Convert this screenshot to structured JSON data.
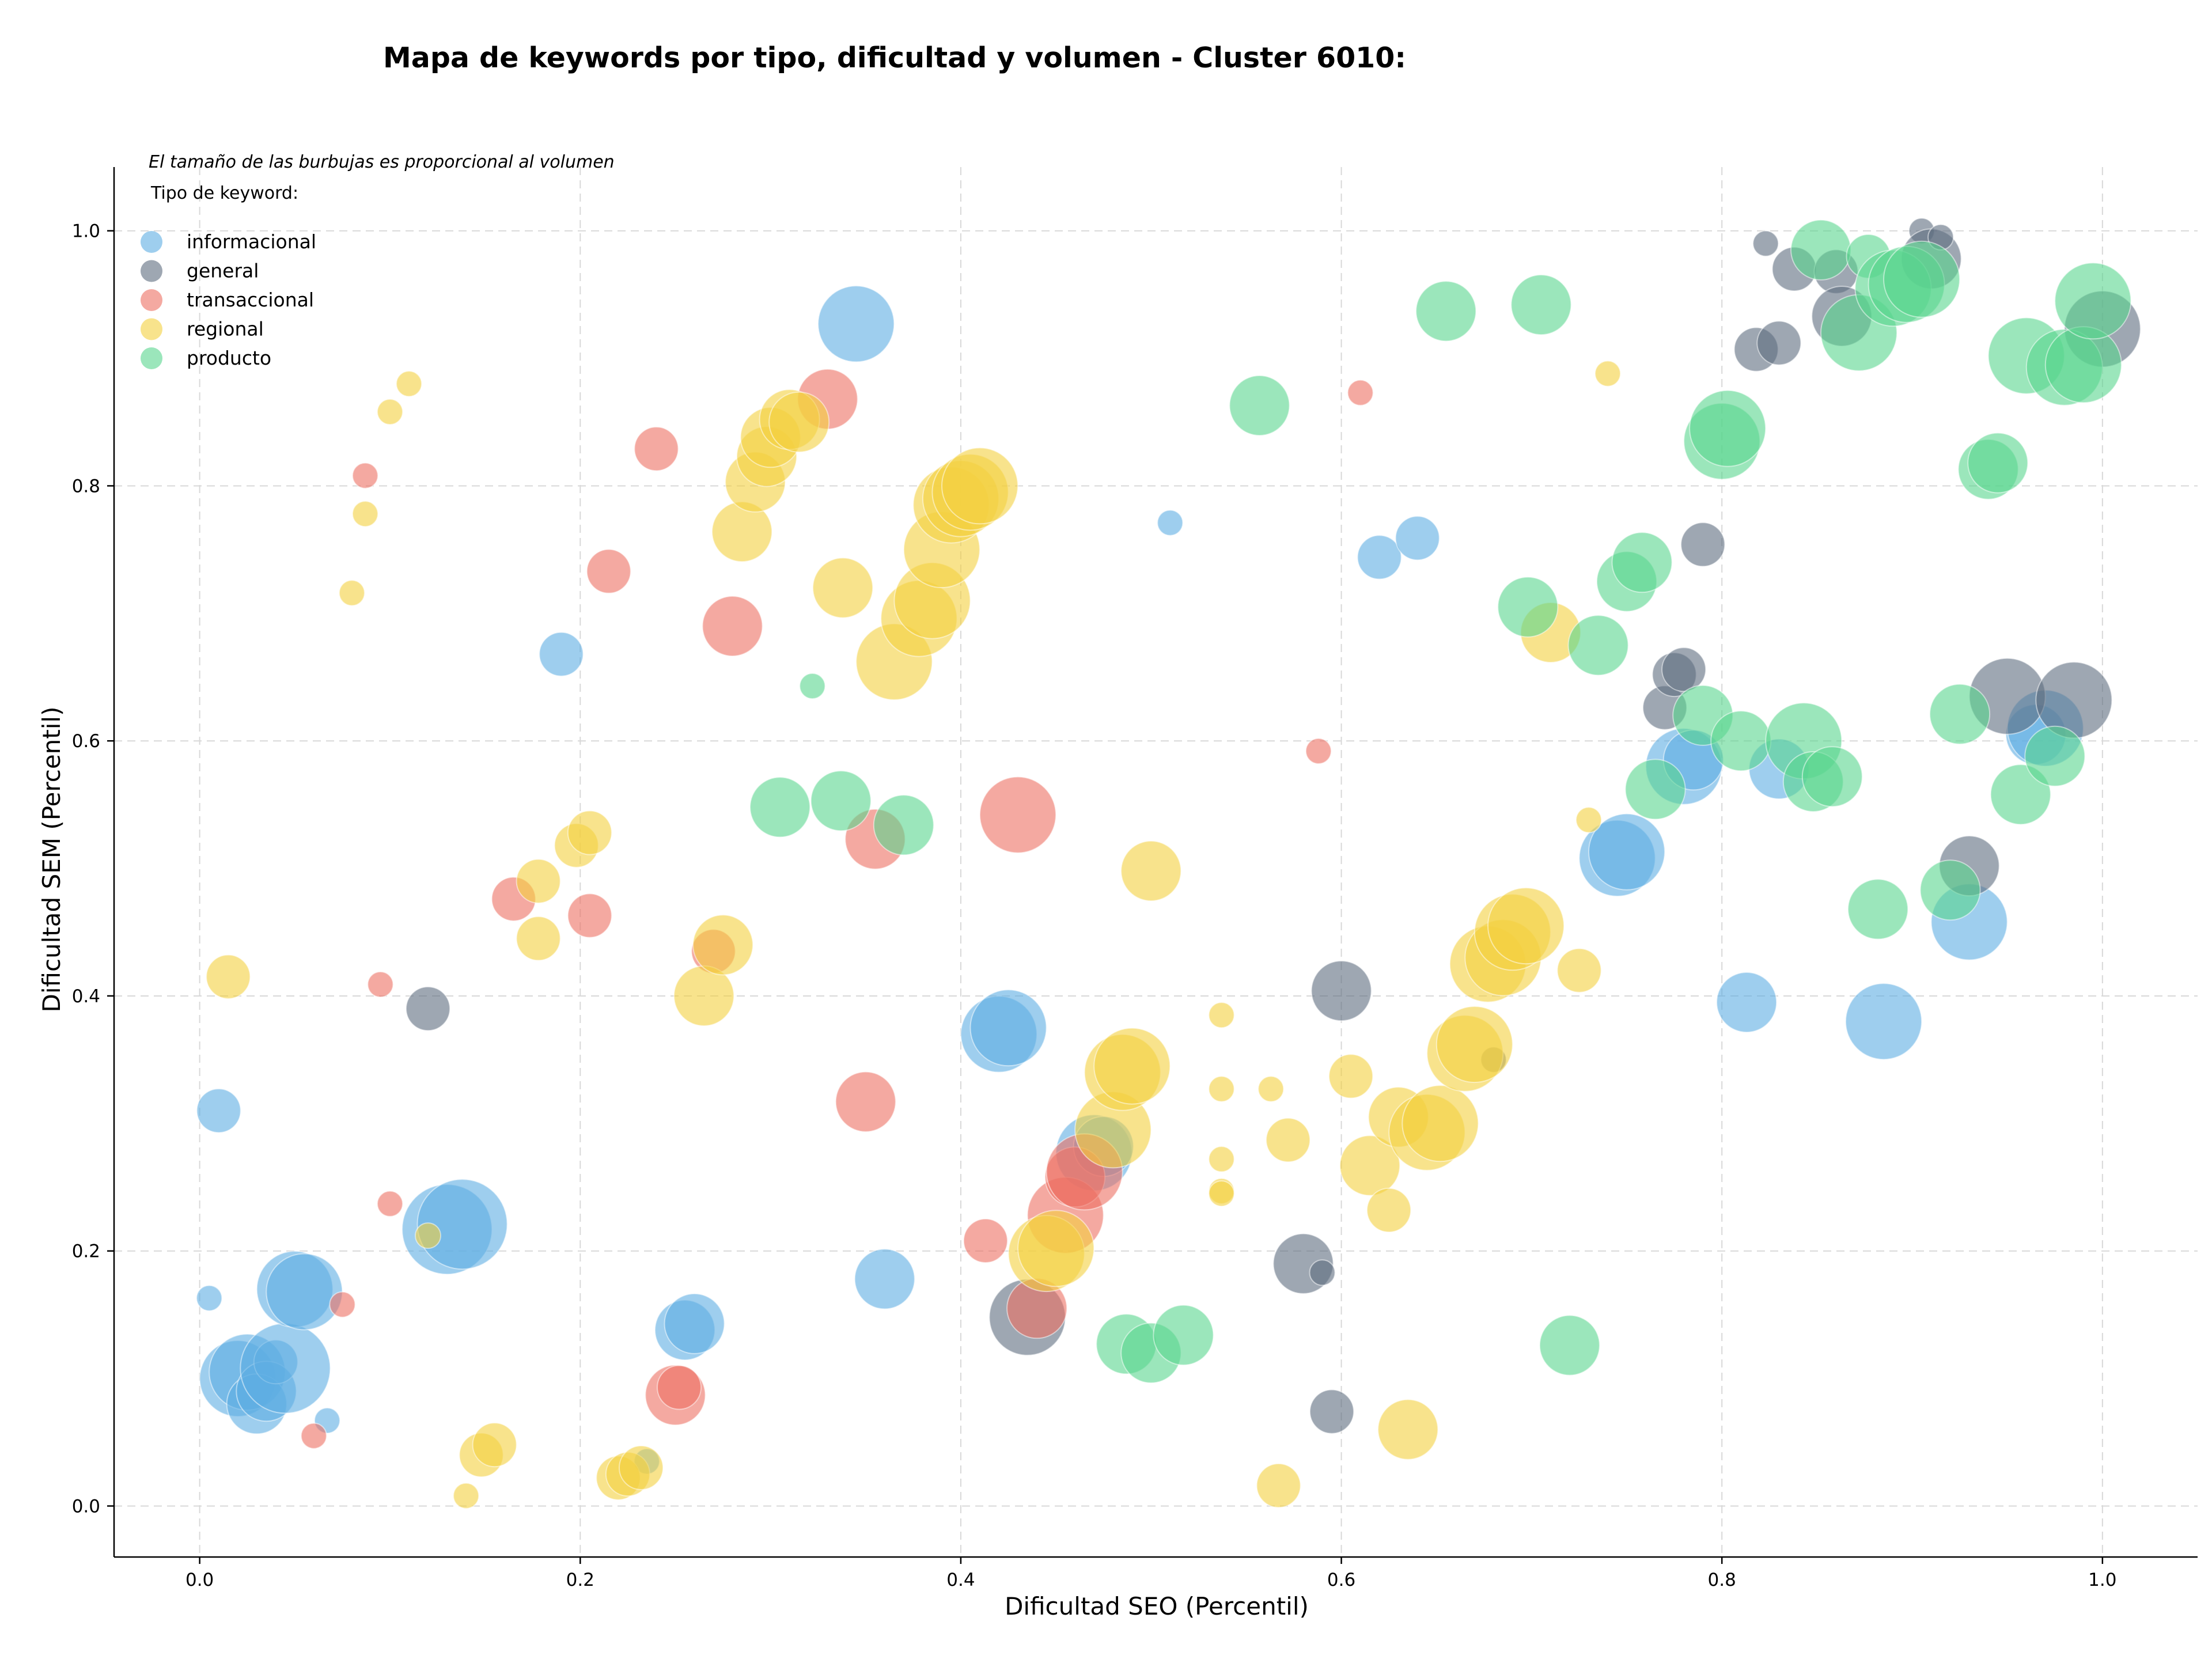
{
  "chart_data": {
    "type": "scatter",
    "title": "Mapa de keywords por tipo, dificultad y volumen - Cluster 6010:",
    "xlabel": "Dificultad SEO (Percentil)",
    "ylabel": "Dificultad SEM (Percentil)",
    "xlim": [
      -0.045,
      1.05
    ],
    "ylim": [
      -0.04,
      1.05
    ],
    "xticks": [
      0.0,
      0.2,
      0.4,
      0.6,
      0.8,
      1.0
    ],
    "xtick_labels": [
      "0.0",
      "0.2",
      "0.4",
      "0.6",
      "0.8",
      "1.0"
    ],
    "yticks": [
      0.0,
      0.2,
      0.4,
      0.6,
      0.8,
      1.0
    ],
    "ytick_labels": [
      "0.0",
      "0.2",
      "0.4",
      "0.6",
      "0.8",
      "1.0"
    ],
    "grid": true,
    "note": "El tamaño de las burbujas es proporcional al volumen",
    "legend_title": "Tipo de keyword:",
    "legend_position": "top-left",
    "series": [
      {
        "name": "informacional",
        "color": "#5dade2",
        "points": [
          [
            0.005,
            0.163,
            1
          ],
          [
            0.01,
            0.31,
            2
          ],
          [
            0.02,
            0.1,
            4
          ],
          [
            0.025,
            0.105,
            4
          ],
          [
            0.03,
            0.08,
            3
          ],
          [
            0.035,
            0.09,
            3
          ],
          [
            0.04,
            0.113,
            2
          ],
          [
            0.045,
            0.108,
            5
          ],
          [
            0.05,
            0.17,
            4
          ],
          [
            0.055,
            0.168,
            4
          ],
          [
            0.067,
            0.067,
            1
          ],
          [
            0.13,
            0.217,
            5
          ],
          [
            0.138,
            0.221,
            5
          ],
          [
            0.19,
            0.668,
            2
          ],
          [
            0.235,
            0.035,
            1
          ],
          [
            0.255,
            0.138,
            3
          ],
          [
            0.26,
            0.143,
            3
          ],
          [
            0.345,
            0.927,
            4
          ],
          [
            0.36,
            0.178,
            3
          ],
          [
            0.42,
            0.37,
            4
          ],
          [
            0.425,
            0.375,
            4
          ],
          [
            0.47,
            0.277,
            4
          ],
          [
            0.475,
            0.282,
            3
          ],
          [
            0.51,
            0.771,
            1
          ],
          [
            0.62,
            0.744,
            2
          ],
          [
            0.64,
            0.759,
            2
          ],
          [
            0.745,
            0.508,
            4
          ],
          [
            0.75,
            0.513,
            4
          ],
          [
            0.78,
            0.58,
            4
          ],
          [
            0.785,
            0.585,
            3
          ],
          [
            0.813,
            0.395,
            3
          ],
          [
            0.83,
            0.578,
            3
          ],
          [
            0.885,
            0.38,
            4
          ],
          [
            0.93,
            0.458,
            4
          ],
          [
            0.965,
            0.605,
            3
          ],
          [
            0.97,
            0.61,
            4
          ]
        ]
      },
      {
        "name": "general",
        "color": "#5d6d7e",
        "points": [
          [
            0.12,
            0.39,
            2
          ],
          [
            0.435,
            0.148,
            4
          ],
          [
            0.58,
            0.19,
            3
          ],
          [
            0.59,
            0.183,
            1
          ],
          [
            0.595,
            0.074,
            2
          ],
          [
            0.6,
            0.404,
            3
          ],
          [
            0.68,
            0.35,
            1
          ],
          [
            0.77,
            0.626,
            2
          ],
          [
            0.775,
            0.652,
            2
          ],
          [
            0.78,
            0.656,
            2
          ],
          [
            0.79,
            0.754,
            2
          ],
          [
            0.818,
            0.907,
            2
          ],
          [
            0.823,
            0.99,
            1
          ],
          [
            0.83,
            0.912,
            2
          ],
          [
            0.838,
            0.97,
            2
          ],
          [
            0.86,
            0.968,
            2
          ],
          [
            0.863,
            0.933,
            3
          ],
          [
            0.905,
            1.0,
            1
          ],
          [
            0.91,
            0.978,
            3
          ],
          [
            0.915,
            0.995,
            1
          ],
          [
            0.93,
            0.502,
            3
          ],
          [
            0.95,
            0.635,
            4
          ],
          [
            0.985,
            0.632,
            4
          ],
          [
            1.0,
            0.923,
            4
          ]
        ]
      },
      {
        "name": "transaccional",
        "color": "#ec7063",
        "points": [
          [
            0.06,
            0.055,
            1
          ],
          [
            0.075,
            0.158,
            1
          ],
          [
            0.087,
            0.808,
            1
          ],
          [
            0.095,
            0.409,
            1
          ],
          [
            0.1,
            0.237,
            1
          ],
          [
            0.165,
            0.476,
            2
          ],
          [
            0.205,
            0.463,
            2
          ],
          [
            0.215,
            0.733,
            2
          ],
          [
            0.24,
            0.829,
            2
          ],
          [
            0.25,
            0.087,
            3
          ],
          [
            0.252,
            0.093,
            2
          ],
          [
            0.27,
            0.435,
            2
          ],
          [
            0.28,
            0.69,
            3
          ],
          [
            0.33,
            0.868,
            3
          ],
          [
            0.35,
            0.317,
            3
          ],
          [
            0.355,
            0.523,
            3
          ],
          [
            0.413,
            0.208,
            2
          ],
          [
            0.43,
            0.542,
            4
          ],
          [
            0.44,
            0.155,
            3
          ],
          [
            0.455,
            0.228,
            4
          ],
          [
            0.46,
            0.258,
            3
          ],
          [
            0.465,
            0.262,
            4
          ],
          [
            0.61,
            0.873,
            1
          ],
          [
            0.588,
            0.592,
            1
          ]
        ]
      },
      {
        "name": "regional",
        "color": "#f4d03f",
        "points": [
          [
            0.015,
            0.415,
            2
          ],
          [
            0.08,
            0.716,
            1
          ],
          [
            0.087,
            0.778,
            1
          ],
          [
            0.1,
            0.858,
            1
          ],
          [
            0.11,
            0.88,
            1
          ],
          [
            0.12,
            0.212,
            1
          ],
          [
            0.14,
            0.008,
            1
          ],
          [
            0.148,
            0.04,
            2
          ],
          [
            0.155,
            0.048,
            2
          ],
          [
            0.178,
            0.445,
            2
          ],
          [
            0.178,
            0.49,
            2
          ],
          [
            0.198,
            0.518,
            2
          ],
          [
            0.205,
            0.528,
            2
          ],
          [
            0.22,
            0.022,
            2
          ],
          [
            0.225,
            0.025,
            2
          ],
          [
            0.232,
            0.03,
            2
          ],
          [
            0.265,
            0.4,
            3
          ],
          [
            0.275,
            0.44,
            3
          ],
          [
            0.285,
            0.764,
            3
          ],
          [
            0.292,
            0.803,
            3
          ],
          [
            0.298,
            0.823,
            3
          ],
          [
            0.3,
            0.838,
            3
          ],
          [
            0.31,
            0.852,
            3
          ],
          [
            0.315,
            0.85,
            3
          ],
          [
            0.338,
            0.72,
            3
          ],
          [
            0.365,
            0.662,
            4
          ],
          [
            0.378,
            0.696,
            4
          ],
          [
            0.385,
            0.71,
            4
          ],
          [
            0.39,
            0.75,
            4
          ],
          [
            0.395,
            0.785,
            4
          ],
          [
            0.4,
            0.79,
            4
          ],
          [
            0.405,
            0.795,
            4
          ],
          [
            0.41,
            0.8,
            4
          ],
          [
            0.445,
            0.198,
            4
          ],
          [
            0.45,
            0.202,
            4
          ],
          [
            0.48,
            0.295,
            4
          ],
          [
            0.485,
            0.34,
            4
          ],
          [
            0.49,
            0.345,
            4
          ],
          [
            0.5,
            0.498,
            3
          ],
          [
            0.537,
            0.385,
            1
          ],
          [
            0.537,
            0.327,
            1
          ],
          [
            0.537,
            0.272,
            1
          ],
          [
            0.537,
            0.247,
            1
          ],
          [
            0.537,
            0.245,
            1
          ],
          [
            0.563,
            0.327,
            1
          ],
          [
            0.567,
            0.016,
            2
          ],
          [
            0.572,
            0.287,
            2
          ],
          [
            0.605,
            0.337,
            2
          ],
          [
            0.615,
            0.267,
            3
          ],
          [
            0.625,
            0.232,
            2
          ],
          [
            0.63,
            0.305,
            3
          ],
          [
            0.635,
            0.06,
            3
          ],
          [
            0.645,
            0.293,
            4
          ],
          [
            0.652,
            0.3,
            4
          ],
          [
            0.665,
            0.355,
            4
          ],
          [
            0.67,
            0.362,
            4
          ],
          [
            0.677,
            0.425,
            4
          ],
          [
            0.685,
            0.43,
            4
          ],
          [
            0.69,
            0.45,
            4
          ],
          [
            0.697,
            0.455,
            4
          ],
          [
            0.71,
            0.685,
            3
          ],
          [
            0.725,
            0.42,
            2
          ],
          [
            0.73,
            0.538,
            1
          ],
          [
            0.74,
            0.888,
            1
          ]
        ]
      },
      {
        "name": "producto",
        "color": "#58d68d",
        "points": [
          [
            0.305,
            0.548,
            3
          ],
          [
            0.322,
            0.643,
            1
          ],
          [
            0.337,
            0.553,
            3
          ],
          [
            0.37,
            0.534,
            3
          ],
          [
            0.487,
            0.127,
            3
          ],
          [
            0.5,
            0.12,
            3
          ],
          [
            0.517,
            0.134,
            3
          ],
          [
            0.557,
            0.863,
            3
          ],
          [
            0.655,
            0.937,
            3
          ],
          [
            0.705,
            0.942,
            3
          ],
          [
            0.698,
            0.705,
            3
          ],
          [
            0.72,
            0.126,
            3
          ],
          [
            0.735,
            0.675,
            3
          ],
          [
            0.75,
            0.725,
            3
          ],
          [
            0.758,
            0.74,
            3
          ],
          [
            0.765,
            0.562,
            3
          ],
          [
            0.79,
            0.62,
            3
          ],
          [
            0.8,
            0.835,
            4
          ],
          [
            0.803,
            0.845,
            4
          ],
          [
            0.81,
            0.6,
            3
          ],
          [
            0.843,
            0.6,
            4
          ],
          [
            0.848,
            0.568,
            3
          ],
          [
            0.852,
            0.985,
            3
          ],
          [
            0.858,
            0.572,
            3
          ],
          [
            0.872,
            0.92,
            4
          ],
          [
            0.877,
            0.98,
            2
          ],
          [
            0.882,
            0.468,
            3
          ],
          [
            0.89,
            0.955,
            4
          ],
          [
            0.897,
            0.958,
            4
          ],
          [
            0.905,
            0.962,
            4
          ],
          [
            0.92,
            0.483,
            3
          ],
          [
            0.925,
            0.621,
            3
          ],
          [
            0.94,
            0.813,
            3
          ],
          [
            0.945,
            0.818,
            3
          ],
          [
            0.96,
            0.902,
            4
          ],
          [
            0.957,
            0.558,
            3
          ],
          [
            0.975,
            0.588,
            3
          ],
          [
            0.98,
            0.893,
            4
          ],
          [
            0.99,
            0.895,
            4
          ],
          [
            0.995,
            0.945,
            4
          ]
        ]
      }
    ]
  }
}
